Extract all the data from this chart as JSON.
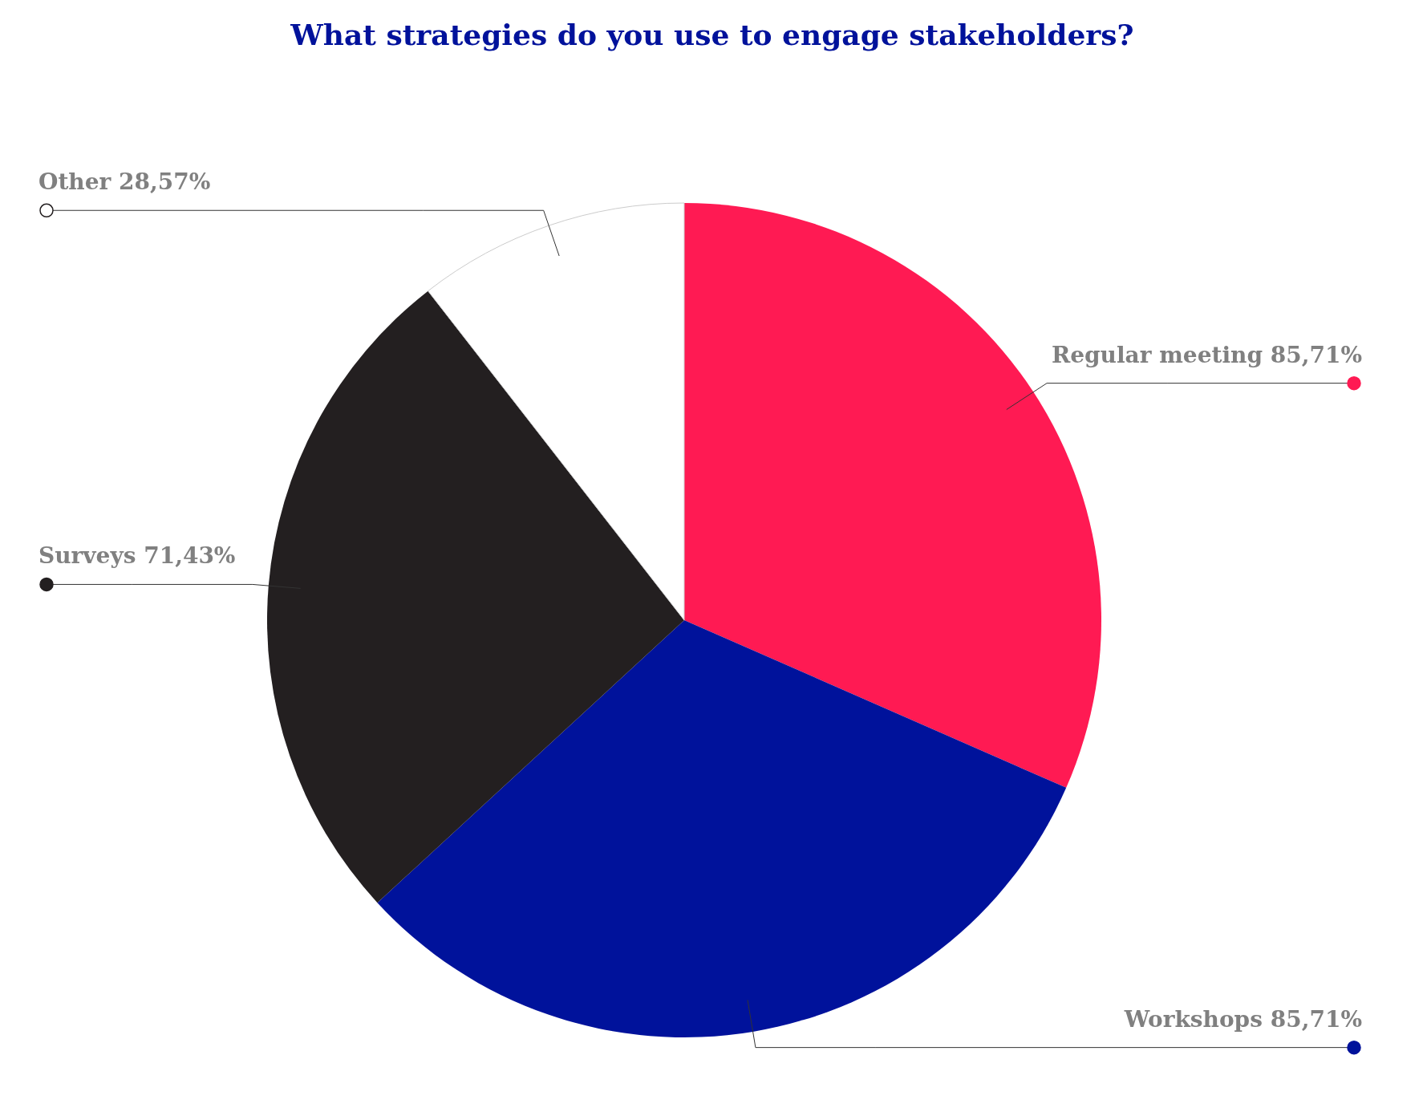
{
  "chart_data": {
    "type": "pie",
    "title": "What strategies do you use to engage stakeholders?",
    "categories": [
      "Regular meeting",
      "Workshops",
      "Surveys",
      "Other"
    ],
    "values": [
      85.71,
      85.71,
      71.43,
      28.57
    ],
    "value_labels": [
      "85,71%",
      "85,71%",
      "71,43%",
      "28,57%"
    ],
    "colors": [
      "#ff1a53",
      "#00129b",
      "#231f20",
      "#ffffff"
    ]
  }
}
